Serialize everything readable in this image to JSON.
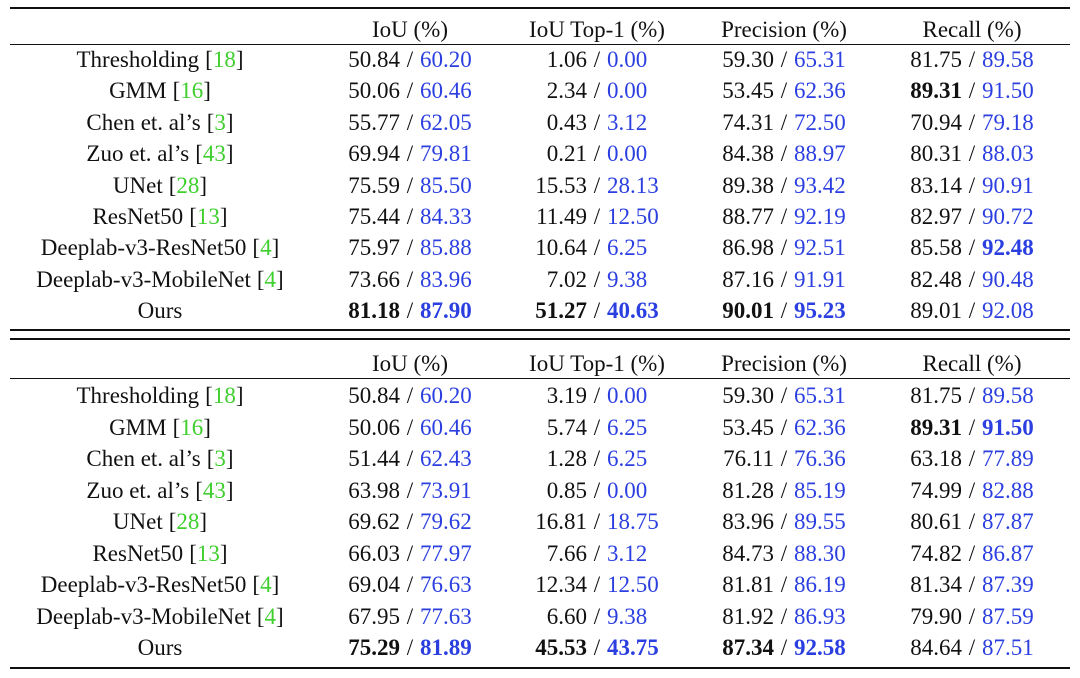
{
  "separator": "/",
  "brackets": [
    "[",
    "]"
  ],
  "tables": [
    {
      "header": [
        "IoU (%)",
        "IoU Top-1 (%)",
        "Precision (%)",
        "Recall (%)"
      ],
      "rows": [
        {
          "method": "Thresholding",
          "ref": "18",
          "values": [
            "50.84",
            "60.20",
            "1.06",
            "0.00",
            "59.30",
            "65.31",
            "81.75",
            "89.58"
          ],
          "bold": [
            false,
            false,
            false,
            false,
            false,
            false,
            false,
            false
          ]
        },
        {
          "method": "GMM",
          "ref": "16",
          "values": [
            "50.06",
            "60.46",
            "2.34",
            "0.00",
            "53.45",
            "62.36",
            "89.31",
            "91.50"
          ],
          "bold": [
            false,
            false,
            false,
            false,
            false,
            false,
            true,
            false
          ]
        },
        {
          "method": "Chen et. al’s",
          "ref": "3",
          "values": [
            "55.77",
            "62.05",
            "0.43",
            "3.12",
            "74.31",
            "72.50",
            "70.94",
            "79.18"
          ],
          "bold": [
            false,
            false,
            false,
            false,
            false,
            false,
            false,
            false
          ]
        },
        {
          "method": "Zuo et. al’s",
          "ref": "43",
          "values": [
            "69.94",
            "79.81",
            "0.21",
            "0.00",
            "84.38",
            "88.97",
            "80.31",
            "88.03"
          ],
          "bold": [
            false,
            false,
            false,
            false,
            false,
            false,
            false,
            false
          ]
        },
        {
          "method": "UNet",
          "ref": "28",
          "values": [
            "75.59",
            "85.50",
            "15.53",
            "28.13",
            "89.38",
            "93.42",
            "83.14",
            "90.91"
          ],
          "bold": [
            false,
            false,
            false,
            false,
            false,
            false,
            false,
            false
          ]
        },
        {
          "method": "ResNet50",
          "ref": "13",
          "values": [
            "75.44",
            "84.33",
            "11.49",
            "12.50",
            "88.77",
            "92.19",
            "82.97",
            "90.72"
          ],
          "bold": [
            false,
            false,
            false,
            false,
            false,
            false,
            false,
            false
          ]
        },
        {
          "method": "Deeplab-v3-ResNet50",
          "ref": "4",
          "values": [
            "75.97",
            "85.88",
            "10.64",
            "6.25",
            "86.98",
            "92.51",
            "85.58",
            "92.48"
          ],
          "bold": [
            false,
            false,
            false,
            false,
            false,
            false,
            false,
            true
          ]
        },
        {
          "method": "Deeplab-v3-MobileNet",
          "ref": "4",
          "values": [
            "73.66",
            "83.96",
            "7.02",
            "9.38",
            "87.16",
            "91.91",
            "82.48",
            "90.48"
          ],
          "bold": [
            false,
            false,
            false,
            false,
            false,
            false,
            false,
            false
          ]
        },
        {
          "method": "Ours",
          "values": [
            "81.18",
            "87.90",
            "51.27",
            "40.63",
            "90.01",
            "95.23",
            "89.01",
            "92.08"
          ],
          "bold": [
            true,
            true,
            true,
            true,
            true,
            true,
            false,
            false
          ]
        }
      ]
    },
    {
      "header": [
        "IoU (%)",
        "IoU Top-1 (%)",
        "Precision (%)",
        "Recall (%)"
      ],
      "rows": [
        {
          "method": "Thresholding",
          "ref": "18",
          "values": [
            "50.84",
            "60.20",
            "3.19",
            "0.00",
            "59.30",
            "65.31",
            "81.75",
            "89.58"
          ],
          "bold": [
            false,
            false,
            false,
            false,
            false,
            false,
            false,
            false
          ]
        },
        {
          "method": "GMM",
          "ref": "16",
          "values": [
            "50.06",
            "60.46",
            "5.74",
            "6.25",
            "53.45",
            "62.36",
            "89.31",
            "91.50"
          ],
          "bold": [
            false,
            false,
            false,
            false,
            false,
            false,
            true,
            true
          ]
        },
        {
          "method": "Chen et. al’s",
          "ref": "3",
          "values": [
            "51.44",
            "62.43",
            "1.28",
            "6.25",
            "76.11",
            "76.36",
            "63.18",
            "77.89"
          ],
          "bold": [
            false,
            false,
            false,
            false,
            false,
            false,
            false,
            false
          ]
        },
        {
          "method": "Zuo et. al’s",
          "ref": "43",
          "values": [
            "63.98",
            "73.91",
            "0.85",
            "0.00",
            "81.28",
            "85.19",
            "74.99",
            "82.88"
          ],
          "bold": [
            false,
            false,
            false,
            false,
            false,
            false,
            false,
            false
          ]
        },
        {
          "method": "UNet",
          "ref": "28",
          "values": [
            "69.62",
            "79.62",
            "16.81",
            "18.75",
            "83.96",
            "89.55",
            "80.61",
            "87.87"
          ],
          "bold": [
            false,
            false,
            false,
            false,
            false,
            false,
            false,
            false
          ]
        },
        {
          "method": "ResNet50",
          "ref": "13",
          "values": [
            "66.03",
            "77.97",
            "7.66",
            "3.12",
            "84.73",
            "88.30",
            "74.82",
            "86.87"
          ],
          "bold": [
            false,
            false,
            false,
            false,
            false,
            false,
            false,
            false
          ]
        },
        {
          "method": "Deeplab-v3-ResNet50",
          "ref": "4",
          "values": [
            "69.04",
            "76.63",
            "12.34",
            "12.50",
            "81.81",
            "86.19",
            "81.34",
            "87.39"
          ],
          "bold": [
            false,
            false,
            false,
            false,
            false,
            false,
            false,
            false
          ]
        },
        {
          "method": "Deeplab-v3-MobileNet",
          "ref": "4",
          "values": [
            "67.95",
            "77.63",
            "6.60",
            "9.38",
            "81.92",
            "86.93",
            "79.90",
            "87.59"
          ],
          "bold": [
            false,
            false,
            false,
            false,
            false,
            false,
            false,
            false
          ]
        },
        {
          "method": "Ours",
          "values": [
            "75.29",
            "81.89",
            "45.53",
            "43.75",
            "87.34",
            "92.58",
            "84.64",
            "87.51"
          ],
          "bold": [
            true,
            true,
            true,
            true,
            true,
            true,
            false,
            false
          ]
        }
      ]
    }
  ]
}
